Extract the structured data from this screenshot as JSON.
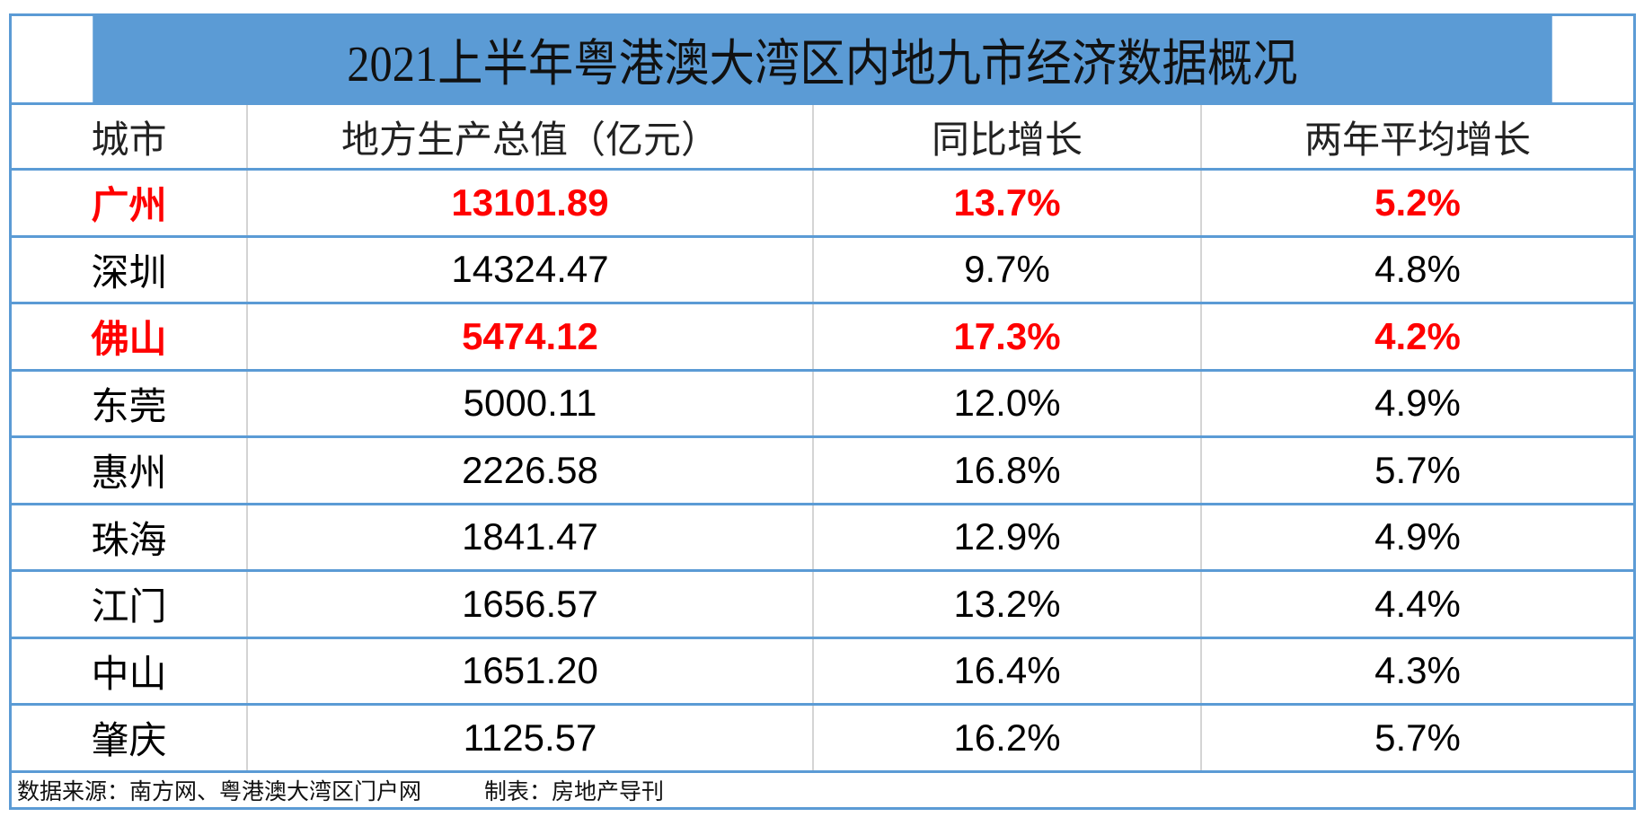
{
  "title": "2021上半年粤港澳大湾区内地九市经济数据概况",
  "colors": {
    "header_bg": "#5b9bd5",
    "highlight": "#ff0000"
  },
  "columns": [
    "城市",
    "地方生产总值（亿元）",
    "同比增长",
    "两年平均增长"
  ],
  "rows": [
    {
      "city": "广州",
      "gdp": "13101.89",
      "yoy": "13.7%",
      "avg2y": "5.2%",
      "highlight": true
    },
    {
      "city": "深圳",
      "gdp": "14324.47",
      "yoy": "9.7%",
      "avg2y": "4.8%",
      "highlight": false
    },
    {
      "city": "佛山",
      "gdp": "5474.12",
      "yoy": "17.3%",
      "avg2y": "4.2%",
      "highlight": true
    },
    {
      "city": "东莞",
      "gdp": "5000.11",
      "yoy": "12.0%",
      "avg2y": "4.9%",
      "highlight": false
    },
    {
      "city": "惠州",
      "gdp": "2226.58",
      "yoy": "16.8%",
      "avg2y": "5.7%",
      "highlight": false
    },
    {
      "city": "珠海",
      "gdp": "1841.47",
      "yoy": "12.9%",
      "avg2y": "4.9%",
      "highlight": false
    },
    {
      "city": "江门",
      "gdp": "1656.57",
      "yoy": "13.2%",
      "avg2y": "4.4%",
      "highlight": false
    },
    {
      "city": "中山",
      "gdp": "1651.20",
      "yoy": "16.4%",
      "avg2y": "4.3%",
      "highlight": false
    },
    {
      "city": "肇庆",
      "gdp": "1125.57",
      "yoy": "16.2%",
      "avg2y": "5.7%",
      "highlight": false
    }
  ],
  "footer": {
    "source": "数据来源：南方网、粤港澳大湾区门户网",
    "made_by": "制表：房地产导刊"
  }
}
